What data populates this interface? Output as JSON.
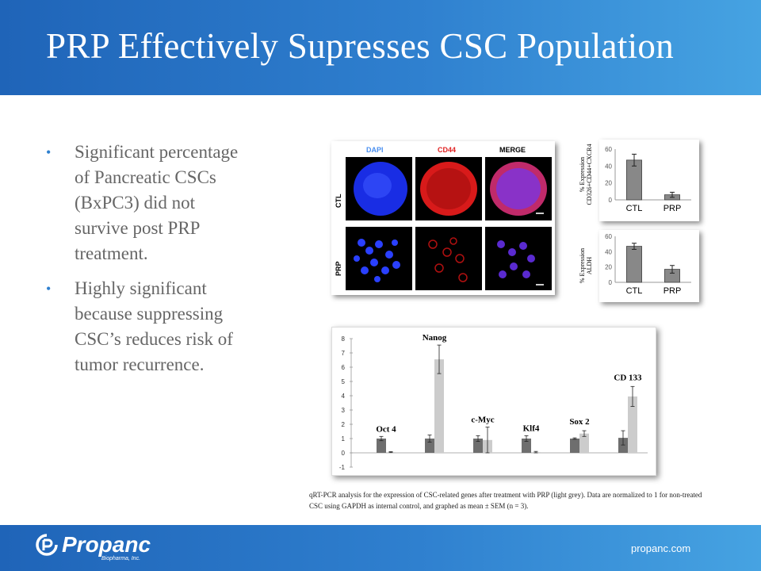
{
  "header": {
    "title": "PRP Effectively Supresses CSC Population"
  },
  "bullets": [
    "Significant percentage of Pancreatic CSCs (BxPC3) did not survive post PRP treatment.",
    "Highly significant because suppressing CSC’s reduces risk of tumor recurrence."
  ],
  "microscopy": {
    "channels": [
      "DAPI",
      "CD44",
      "MERGE"
    ],
    "rows": [
      "CTL",
      "PRP"
    ],
    "colors": {
      "dapi": "#4a8ff0",
      "cd44": "#e02020",
      "merge": "#000000"
    }
  },
  "chart_data": [
    {
      "type": "bar",
      "categories": [
        "CTL",
        "PRP"
      ],
      "values": [
        47,
        6
      ],
      "errors": [
        7,
        3
      ],
      "ylim": [
        0,
        60
      ],
      "yticks": [
        "0",
        "20",
        "40",
        "60"
      ],
      "ylabel": "% Expression CD326+CD44+CXCR4",
      "ylabel_lines": [
        "% Expression",
        "CD326+CD44+CXCR4"
      ]
    },
    {
      "type": "bar",
      "categories": [
        "CTL",
        "PRP"
      ],
      "values": [
        47,
        17
      ],
      "errors": [
        4,
        5
      ],
      "ylim": [
        0,
        60
      ],
      "yticks": [
        "0",
        "20",
        "40",
        "60"
      ],
      "ylabel": "% Expression ALDH",
      "ylabel_lines": [
        "% Expression",
        "ALDH"
      ]
    },
    {
      "type": "bar",
      "categories": [
        "Oct 4",
        "Nanog",
        "c-Myc",
        "Klf4",
        "Sox 2",
        "CD 133"
      ],
      "series": [
        {
          "values": [
            1.0,
            1.0,
            1.0,
            1.0,
            1.0,
            1.05
          ],
          "errors": [
            0.15,
            0.25,
            0.2,
            0.2,
            0.05,
            0.5
          ]
        },
        {
          "values": [
            0.05,
            6.55,
            0.9,
            0.05,
            1.35,
            3.95
          ],
          "errors": [
            0.03,
            1.0,
            0.9,
            0.05,
            0.2,
            0.7
          ]
        }
      ],
      "ylim": [
        -1,
        8
      ],
      "yticks": [
        "-1",
        "0",
        "1",
        "2",
        "3",
        "4",
        "5",
        "6",
        "7",
        "8"
      ],
      "colors": [
        "#6e6e6e",
        "#cccccc"
      ]
    }
  ],
  "caption": "qRT-PCR analysis for the expression of CSC-related genes after treatment with PRP (light grey). Data are normalized to 1 for non-treated CSC using GAPDH as internal control, and graphed as mean ± SEM (n = 3).",
  "footer": {
    "logo": "Propanc",
    "logo_sub": "Biopharma, Inc.",
    "website": "propanc.com"
  }
}
